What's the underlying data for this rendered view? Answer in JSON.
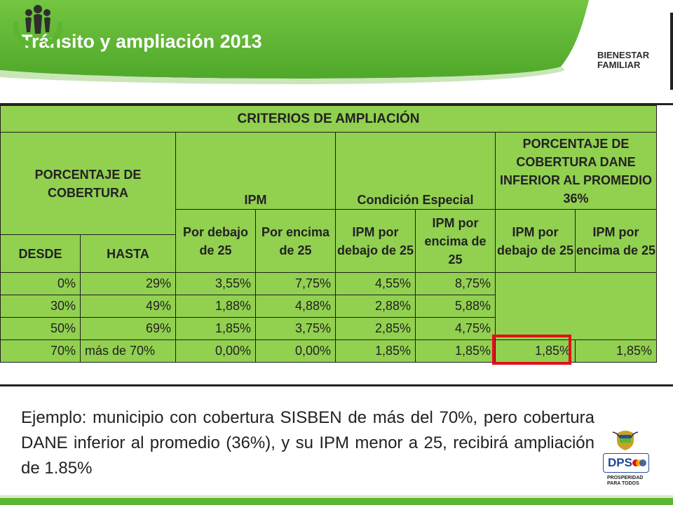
{
  "header": {
    "title": "Tránsito y ampliación 2013",
    "logo_line1": "BIENESTAR",
    "logo_line2": "FAMILIAR"
  },
  "table": {
    "title": "CRITERIOS DE AMPLIACIÓN",
    "col_coverage": "PORCENTAJE DE COBERTURA",
    "col_ipm": "IPM",
    "col_special": "Condición Especial",
    "col_dane": "PORCENTAJE DE COBERTURA DANE INFERIOR AL PROMEDIO 36%",
    "sub_desde": "DESDE",
    "sub_hasta": "HASTA",
    "sub_ipm_below": "Por debajo de 25",
    "sub_ipm_above": "Por encima de 25",
    "sub_special_below": "IPM por debajo de 25",
    "sub_special_above": "IPM por encima de 25",
    "sub_dane_below": "IPM por debajo de 25",
    "sub_dane_above": "IPM por encima de 25",
    "rows": [
      {
        "desde": "0%",
        "hasta": "29%",
        "ipm_below": "3,55%",
        "ipm_above": "7,75%",
        "esp_below": "4,55%",
        "esp_above": "8,75%",
        "dane_below": "",
        "dane_above": ""
      },
      {
        "desde": "30%",
        "hasta": "49%",
        "ipm_below": "1,88%",
        "ipm_above": "4,88%",
        "esp_below": "2,88%",
        "esp_above": "5,88%",
        "dane_below": "",
        "dane_above": ""
      },
      {
        "desde": "50%",
        "hasta": "69%",
        "ipm_below": "1,85%",
        "ipm_above": "3,75%",
        "esp_below": "2,85%",
        "esp_above": "4,75%",
        "dane_below": "",
        "dane_above": ""
      },
      {
        "desde": "70%",
        "hasta": "más de 70%",
        "ipm_below": "0,00%",
        "ipm_above": "0,00%",
        "esp_below": "1,85%",
        "esp_above": "1,85%",
        "dane_below": "1,85%",
        "dane_above": "1,85%"
      }
    ],
    "highlight_color": "#e0101a",
    "fill_color": "#92d050"
  },
  "example_text": "Ejemplo: municipio con cobertura SISBEN de más del 70%, pero cobertura DANE inferior al promedio (36%), y su IPM menor a 25, recibirá ampliación de 1.85%",
  "dps": {
    "letters": "DPS",
    "tag_line1": "PROSPERIDAD",
    "tag_line2": "PARA TODOS"
  },
  "colors": {
    "banner_green": "#5cb531",
    "banner_dark": "#3e8f22"
  }
}
